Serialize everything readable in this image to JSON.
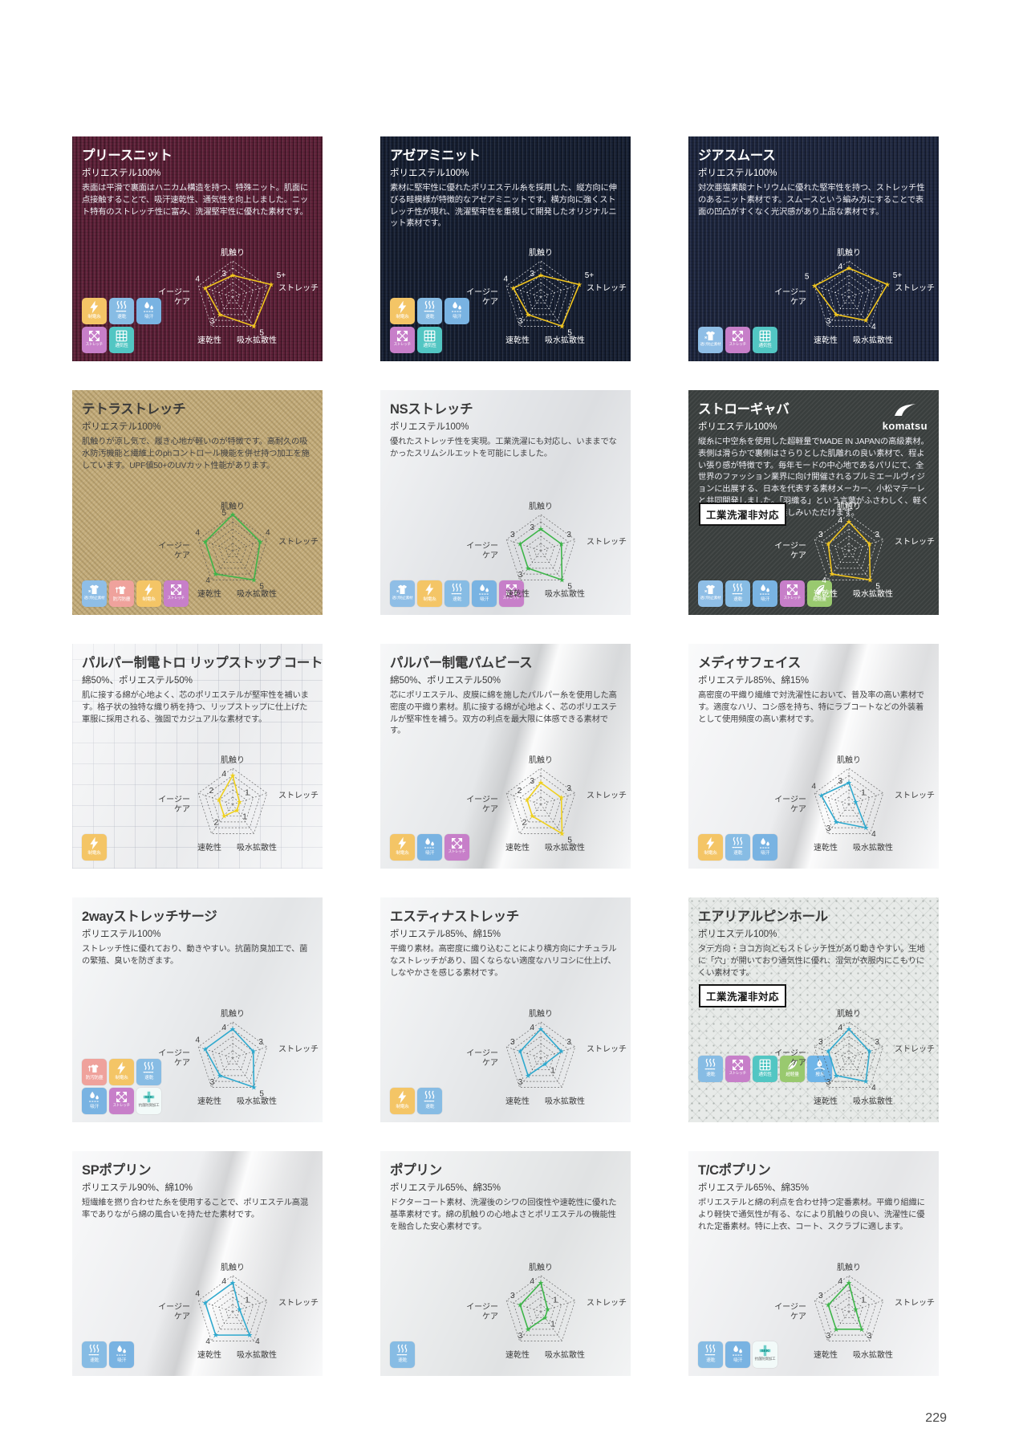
{
  "page": {
    "number": "229"
  },
  "radar_axes": [
    "肌触り",
    "ストレッチ",
    "吸水拡散性",
    "速乾性",
    "イージーケア"
  ],
  "badge_text": "工業洗濯非対応",
  "brand_text": "komatsu",
  "icon_styles": {
    "bolt": {
      "color": "#F4C566"
    },
    "steam": {
      "color": "#87BCE4"
    },
    "drops": {
      "color": "#79B3E2"
    },
    "stretch": {
      "color": "#C77FC9"
    },
    "vent": {
      "color": "#52C6C3"
    },
    "sheer": {
      "color": "#8FBEE6"
    },
    "stain": {
      "color": "#EFA29C"
    },
    "light": {
      "color": "#99C96F"
    },
    "repel": {
      "color": "#6FB5E8"
    },
    "sek": {
      "color": "#F2FAF9",
      "dark_label": true
    }
  },
  "cards": [
    {
      "title": "プリースニット",
      "composition": "ポリエステル100%",
      "description": "表面は平滑で裏面はハニカム構造を持つ、特殊ニット。肌面に点接触することで、吸汗速乾性、通気性を向上しました。ニット特有のストレッチ性に富み、洗濯堅牢性に優れた素材です。",
      "theme": "dark",
      "bg": "#5E2038",
      "texture": "rib",
      "radar": {
        "color": "#F0C41E",
        "values": [
          "3",
          "5+",
          "5",
          "3",
          "4"
        ]
      },
      "icon_rows": [
        [
          {
            "glyph": "bolt",
            "label": "制電糸"
          },
          {
            "glyph": "steam",
            "label": "速乾"
          },
          {
            "glyph": "drops",
            "label": "吸汗"
          }
        ],
        [
          {
            "glyph": "stretch",
            "label": "ストレッチ"
          },
          {
            "glyph": "vent",
            "label": "通気性"
          }
        ]
      ]
    },
    {
      "title": "アゼアミニット",
      "composition": "ポリエステル100%",
      "description": "素材に堅牢性に優れたポリエステル糸を採用した、縦方向に伸びる畦模様が特徴的なアゼアミニットです。横方向に強くストレッチ性が現れ、洗濯堅牢性を重視して開発したオリジナルニット素材です。",
      "theme": "dark",
      "bg": "#161F33",
      "texture": "rib",
      "radar": {
        "color": "#F0C41E",
        "values": [
          "3",
          "5+",
          "5",
          "3",
          "4"
        ]
      },
      "icon_rows": [
        [
          {
            "glyph": "bolt",
            "label": "制電糸"
          },
          {
            "glyph": "steam",
            "label": "速乾"
          },
          {
            "glyph": "drops",
            "label": "吸汗"
          }
        ],
        [
          {
            "glyph": "stretch",
            "label": "ストレッチ"
          },
          {
            "glyph": "vent",
            "label": "通気性"
          }
        ]
      ]
    },
    {
      "title": "ジアスムース",
      "composition": "ポリエステル100%",
      "description": "対次亜塩素酸ナトリウムに優れた堅牢性を持つ、ストレッチ性のあるニット素材です。スムースという編み方にすることで表面の凹凸がすくなく光沢感があり上品な素材です。",
      "theme": "dark",
      "bg": "#1E2740",
      "texture": "rib",
      "radar": {
        "color": "#F0C41E",
        "values": [
          "4",
          "5+",
          "4",
          "3",
          "5"
        ]
      },
      "icon_rows": [
        [
          {
            "glyph": "sheer",
            "label": "透け防止素材"
          },
          {
            "glyph": "stretch",
            "label": "ストレッチ"
          },
          {
            "glyph": "vent",
            "label": "通気性"
          }
        ]
      ]
    },
    {
      "title": "テトラストレッチ",
      "composition": "ポリエステル100%",
      "description": "肌触りが涼し気で、履き心地が軽いのが特徴です。高耐久の吸水防汚機能と繊維上のphコントロール機能を併せ持つ加工を施しています。UPF値50+のUVカット性能があります。",
      "theme": "light",
      "bg": "#C3AC7B",
      "texture": "twill",
      "radar": {
        "color": "#3EB54A",
        "values": [
          "5",
          "4",
          "5",
          "4",
          "4"
        ]
      },
      "icon_rows": [
        [
          {
            "glyph": "sheer",
            "label": "透け防止素材"
          },
          {
            "glyph": "stain",
            "label": "防汚防塵"
          },
          {
            "glyph": "bolt",
            "label": "制電糸"
          },
          {
            "glyph": "stretch",
            "label": "ストレッチ"
          }
        ]
      ]
    },
    {
      "title": "NSストレッチ",
      "composition": "ポリエステル100%",
      "description": "優れたストレッチ性を実現。工業洗濯にも対応し、いままでなかったスリムシルエットを可能にしました。",
      "theme": "light",
      "bg": "#E8EAED",
      "texture": "plain",
      "radar": {
        "color": "#3EB54A",
        "values": [
          "3",
          "3",
          "5",
          "3",
          "3"
        ]
      },
      "icon_rows": [
        [
          {
            "glyph": "sheer",
            "label": "透け防止素材"
          },
          {
            "glyph": "bolt",
            "label": "制電糸"
          },
          {
            "glyph": "steam",
            "label": "速乾"
          },
          {
            "glyph": "drops",
            "label": "吸汗"
          },
          {
            "glyph": "stretch",
            "label": "ストレッチ"
          }
        ]
      ]
    },
    {
      "title": "ストローギャバ",
      "composition": "ポリエステル100%",
      "description": "縦糸に中空糸を使用した超軽量でMADE IN JAPANの高級素材。表側は滑らかで裏側はさらりとした肌離れの良い素材で、程よい張り感が特徴です。毎年モードの中心地であるパリにて、全世界のファッション業界に向け開催されるプルミエールヴィジョンに出展する、日本を代表する素材メーカー、小松マテーレと共同開発しました。「羽織る」という言葉がふさわしく、軽くしなやかな風合いをお楽しみいただけます。",
      "theme": "dark",
      "bg": "#393E3D",
      "texture": "twill-dark",
      "badge": true,
      "brand": true,
      "radar": {
        "color": "#F0C41E",
        "values": [
          "4",
          "3",
          "5",
          "4",
          "3"
        ]
      },
      "icon_rows": [
        [
          {
            "glyph": "sheer",
            "label": "透け防止素材"
          },
          {
            "glyph": "steam",
            "label": "速乾"
          },
          {
            "glyph": "drops",
            "label": "吸汗"
          },
          {
            "glyph": "stretch",
            "label": "ストレッチ"
          },
          {
            "glyph": "light",
            "label": "超軽量"
          }
        ]
      ]
    },
    {
      "title": "パルパー制電トロ リップストップ コート",
      "composition": "綿50%、ポリエステル50%",
      "description": "肌に接する綿が心地よく、芯のポリエステルが堅牢性を補います。格子状の独特な織り柄を持つ、リップストップに仕上げた軍服に採用される、強固でカジュアルな素材です。",
      "theme": "light",
      "bg": "#F2F3F5",
      "texture": "grid",
      "radar": {
        "color": "#EFD01E",
        "values": [
          "4",
          "1",
          "1",
          "2",
          "2"
        ]
      },
      "icon_rows": [
        [
          {
            "glyph": "bolt",
            "label": "制電糸"
          }
        ]
      ]
    },
    {
      "title": "パルパー制電パムビース",
      "composition": "綿50%、ポリエステル50%",
      "description": "芯にポリエステル、皮膜に綿を施したパルパー糸を使用した高密度の平織り素材。肌に接する綿が心地よく、芯のポリエステルが堅牢性を補う。双方の利点を最大限に体感できる素材です。",
      "theme": "light",
      "bg": "#ECEEF0",
      "texture": "plain",
      "fold": true,
      "radar": {
        "color": "#EFD01E",
        "values": [
          "3",
          "3",
          "5",
          "2",
          "2"
        ]
      },
      "icon_rows": [
        [
          {
            "glyph": "bolt",
            "label": "制電糸"
          },
          {
            "glyph": "drops",
            "label": "吸汗"
          },
          {
            "glyph": "stretch",
            "label": "ストレッチ"
          }
        ]
      ]
    },
    {
      "title": "メディサフェイス",
      "composition": "ポリエステル85%、綿15%",
      "description": "高密度の平織り繊維で対洗濯性において、普及率の高い素材です。適度なハリ、コシ感を持ち、特にラブコートなどの外装着として使用頻度の高い素材です。",
      "theme": "light",
      "bg": "#F3F4F6",
      "texture": "plain",
      "fold": true,
      "radar": {
        "color": "#2FA9CE",
        "values": [
          "3",
          "1",
          "4",
          "3",
          "4"
        ]
      },
      "icon_rows": [
        [
          {
            "glyph": "bolt",
            "label": "制電糸"
          },
          {
            "glyph": "steam",
            "label": "速乾"
          },
          {
            "glyph": "drops",
            "label": "吸汗"
          }
        ]
      ]
    },
    {
      "title": "2wayストレッチサージ",
      "composition": "ポリエステル100%",
      "description": "ストレッチ性に優れており、動きやすい。抗菌防臭加工で、菌の繁殖、臭いを防ぎます。",
      "theme": "light",
      "bg": "#EFF1F3",
      "texture": "plain",
      "radar": {
        "color": "#2FA9CE",
        "values": [
          "4",
          "3",
          "5",
          "3",
          "4"
        ]
      },
      "icon_rows": [
        [
          {
            "glyph": "stain",
            "label": "防汚防塵"
          },
          {
            "glyph": "bolt",
            "label": "制電糸"
          },
          {
            "glyph": "steam",
            "label": "速乾"
          }
        ],
        [
          {
            "glyph": "drops",
            "label": "吸汗"
          },
          {
            "glyph": "stretch",
            "label": "ストレッチ"
          },
          {
            "glyph": "sek",
            "label": "抗菌防臭加工"
          }
        ]
      ]
    },
    {
      "title": "エスティナストレッチ",
      "composition": "ポリエステル85%、綿15%",
      "description": "平織り素材。高密度に織り込むことにより横方向にナチュラルなストレッチがあり、固くならない適度なハリコシに仕上げ、しなやかさを感じる素材です。",
      "theme": "light",
      "bg": "#EDEFF1",
      "texture": "plain",
      "radar": {
        "color": "#2FA9CE",
        "values": [
          "4",
          "3",
          "1",
          "3",
          "3"
        ]
      },
      "icon_rows": [
        [
          {
            "glyph": "bolt",
            "label": "制電糸"
          },
          {
            "glyph": "steam",
            "label": "速乾"
          }
        ]
      ]
    },
    {
      "title": "エアリアルピンホール",
      "composition": "ポリエステル100%",
      "description": "タテ方向・ヨコ方向ともストレッチ性があり動きやすい。生地に「穴」が開いており通気性に優れ、湿気が衣服内にこもりにくい素材です。",
      "theme": "light",
      "bg": "#E7EAE8",
      "texture": "pin-dot",
      "badge": true,
      "radar": {
        "color": "#2FA9CE",
        "values": [
          "4",
          "3",
          "4",
          "3",
          "3"
        ]
      },
      "icon_rows": [
        [
          {
            "glyph": "steam",
            "label": "速乾"
          },
          {
            "glyph": "stretch",
            "label": "ストレッチ"
          },
          {
            "glyph": "vent",
            "label": "通気性"
          },
          {
            "glyph": "light",
            "label": "超軽量"
          },
          {
            "glyph": "repel",
            "label": "撥水"
          }
        ]
      ]
    },
    {
      "title": "SPポプリン",
      "composition": "ポリエステル90%、綿10%",
      "description": "短繊維を撚り合わせた糸を使用することで、ポリエステル高混率でありながら綿の風合いを持たせた素材です。",
      "theme": "light",
      "bg": "#F2F3F5",
      "texture": "plain",
      "fold": true,
      "radar": {
        "color": "#2FA9CE",
        "values": [
          "4",
          "1",
          "4",
          "4",
          "4"
        ]
      },
      "icon_rows": [
        [
          {
            "glyph": "steam",
            "label": "速乾"
          },
          {
            "glyph": "drops",
            "label": "吸汗"
          }
        ]
      ]
    },
    {
      "title": "ポプリン",
      "composition": "ポリエステル65%、綿35%",
      "description": "ドクターコート素材、洗濯後のシワの回復性や速乾性に優れた基準素材です。綿の肌触りの心地よさとポリエステルの機能性を融合した安心素材です。",
      "theme": "light",
      "bg": "#ECEEEF",
      "texture": "plain",
      "radar": {
        "color": "#3EB54A",
        "values": [
          "4",
          "1",
          "1",
          "3",
          "3"
        ]
      },
      "icon_rows": [
        [
          {
            "glyph": "steam",
            "label": "速乾"
          }
        ]
      ]
    },
    {
      "title": "T/Cポプリン",
      "composition": "ポリエステル65%、綿35%",
      "description": "ポリエステルと綿の利点を合わせ持つ定番素材。平織り組織により軽快で通気性が有る、なにより肌触りの良い、洗濯性に優れた定番素材。特に上衣、コート、スクラブに適します。",
      "theme": "light",
      "bg": "#F1F2F4",
      "texture": "plain",
      "radar": {
        "color": "#3EB54A",
        "values": [
          "4",
          "1",
          "3",
          "3",
          "3"
        ]
      },
      "icon_rows": [
        [
          {
            "glyph": "steam",
            "label": "速乾"
          },
          {
            "glyph": "drops",
            "label": "吸汗"
          },
          {
            "glyph": "sek",
            "label": "抗菌防臭加工"
          }
        ]
      ]
    }
  ]
}
